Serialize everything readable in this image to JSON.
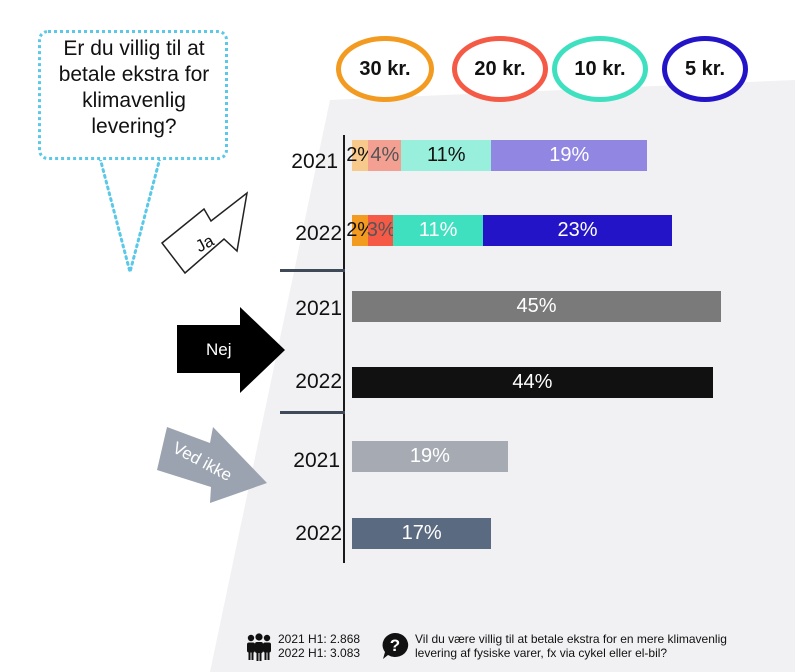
{
  "question_bubble": {
    "text": "Er du villig til at betale ekstra for klimavenlig levering?"
  },
  "price_legend": [
    {
      "label": "30 kr.",
      "color": "#f39a20"
    },
    {
      "label": "20 kr.",
      "color": "#f45a46"
    },
    {
      "label": "10 kr.",
      "color": "#3fe0c0"
    },
    {
      "label": "5 kr.",
      "color": "#2414c8"
    }
  ],
  "arrows": {
    "ja": "Ja",
    "nej": "Nej",
    "ved_ikke": "Ved ikke"
  },
  "chart_data": {
    "type": "bar",
    "orientation": "horizontal",
    "stacked": true,
    "x_unit": "%",
    "xlim": [
      0,
      100
    ],
    "groups": [
      {
        "name": "Ja",
        "rows": [
          {
            "year": "2021",
            "segments": [
              {
                "series": "30 kr.",
                "value": 2,
                "label": "2%",
                "color": "#f7c98a"
              },
              {
                "series": "20 kr.",
                "value": 4,
                "label": "4%",
                "color": "#f3a093"
              },
              {
                "series": "10 kr.",
                "value": 11,
                "label": "11%",
                "color": "#98efdb"
              },
              {
                "series": "5 kr.",
                "value": 19,
                "label": "19%",
                "color": "#9187e3"
              }
            ]
          },
          {
            "year": "2022",
            "segments": [
              {
                "series": "30 kr.",
                "value": 2,
                "label": "2%",
                "color": "#f39a20"
              },
              {
                "series": "20 kr.",
                "value": 3,
                "label": "3%",
                "color": "#f45a46"
              },
              {
                "series": "10 kr.",
                "value": 11,
                "label": "11%",
                "color": "#3fe0c0"
              },
              {
                "series": "5 kr.",
                "value": 23,
                "label": "23%",
                "color": "#2414c8"
              }
            ]
          }
        ]
      },
      {
        "name": "Nej",
        "rows": [
          {
            "year": "2021",
            "segments": [
              {
                "value": 45,
                "label": "45%",
                "color": "#7a7a7a"
              }
            ]
          },
          {
            "year": "2022",
            "segments": [
              {
                "value": 44,
                "label": "44%",
                "color": "#111111"
              }
            ]
          }
        ]
      },
      {
        "name": "Ved ikke",
        "rows": [
          {
            "year": "2021",
            "segments": [
              {
                "value": 19,
                "label": "19%",
                "color": "#a6abb3"
              }
            ]
          },
          {
            "year": "2022",
            "segments": [
              {
                "value": 17,
                "label": "17%",
                "color": "#5a6a80"
              }
            ]
          }
        ]
      }
    ]
  },
  "footer": {
    "sample_2021": "2021 H1: 2.868",
    "sample_2022": "2022 H1: 3.083",
    "question_line1": "Vil du være villig til at betale ekstra for en mere klimavenlig",
    "question_line2": "levering af fysiske varer, fx via cykel eller el-bil?",
    "people_icon": "people-icon",
    "question_icon": "question-icon"
  }
}
